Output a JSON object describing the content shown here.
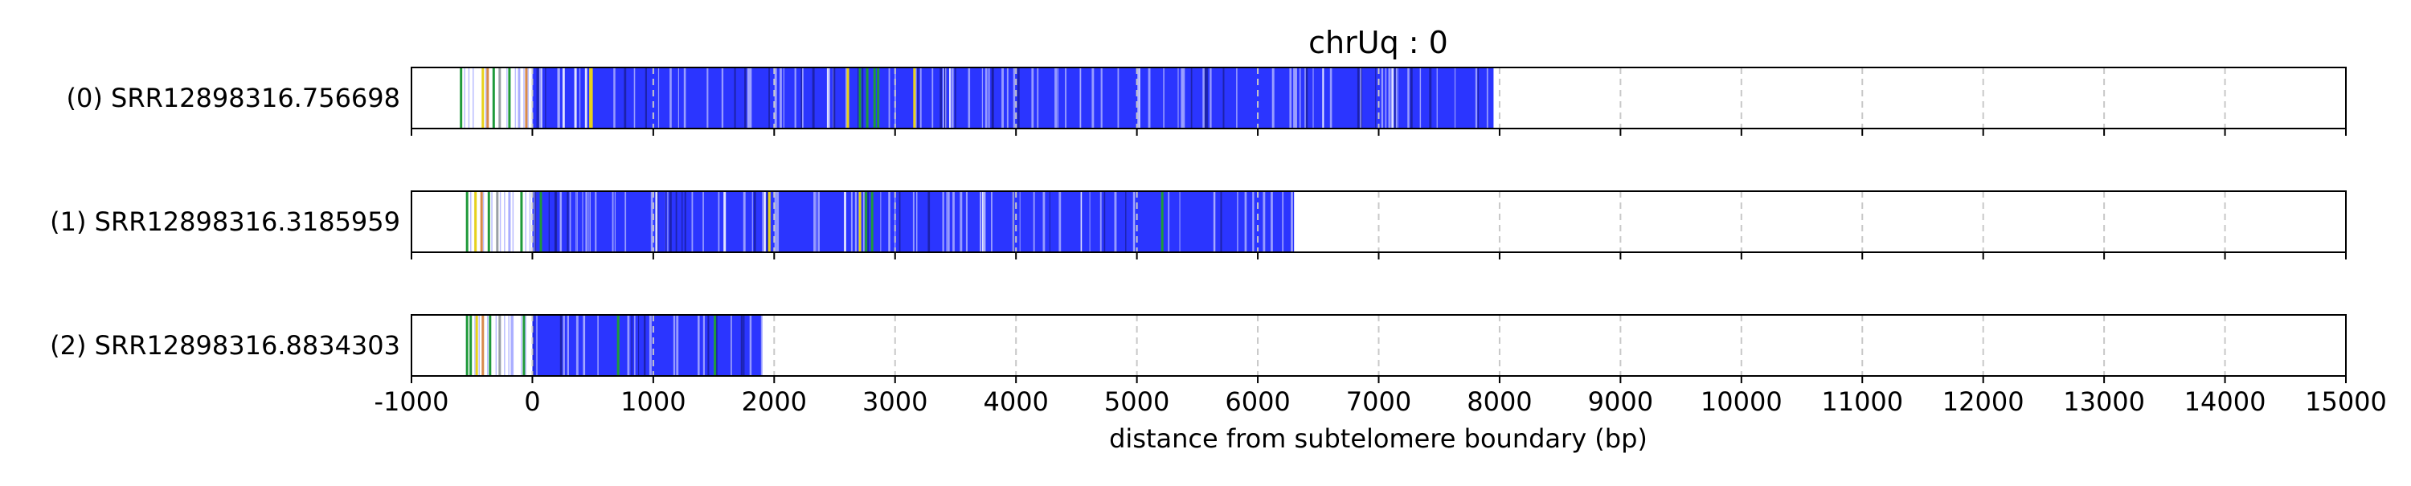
{
  "chart_data": {
    "type": "track-plot",
    "title": "chrUq : 0",
    "xlabel": "distance from subtelomere boundary (bp)",
    "ylabel": "",
    "xlim": [
      -1000,
      15000
    ],
    "xticks": [
      -1000,
      0,
      1000,
      2000,
      3000,
      4000,
      5000,
      6000,
      7000,
      8000,
      9000,
      10000,
      11000,
      12000,
      13000,
      14000,
      15000
    ],
    "grid": "vertical dashed",
    "colors": {
      "main": "#2b35ff",
      "light": "#a9adff",
      "dark": "#1a1f9e",
      "green": "#1f9a3a",
      "yellow": "#e8d21a",
      "orange": "#d88a4a",
      "grey": "#9aa0a6",
      "grid": "#c8c8c8"
    },
    "tracks": [
      {
        "label": "(0) SRR12898316.756698",
        "start": -600,
        "dense_start": 0,
        "end": 7950,
        "features": [
          {
            "x": -600,
            "c": "green"
          },
          {
            "x": -420,
            "c": "yellow"
          },
          {
            "x": -380,
            "c": "orange"
          },
          {
            "x": -330,
            "c": "green"
          },
          {
            "x": -280,
            "c": "grey"
          },
          {
            "x": -200,
            "c": "green"
          },
          {
            "x": -120,
            "c": "light"
          },
          {
            "x": -60,
            "c": "orange"
          },
          {
            "x": 470,
            "c": "yellow"
          },
          {
            "x": 480,
            "c": "yellow"
          },
          {
            "x": 2700,
            "c": "green"
          },
          {
            "x": 2760,
            "c": "green"
          },
          {
            "x": 2820,
            "c": "green"
          },
          {
            "x": 2850,
            "c": "green"
          },
          {
            "x": 2600,
            "c": "yellow"
          },
          {
            "x": 3150,
            "c": "yellow"
          }
        ]
      },
      {
        "label": "(1) SRR12898316.3185959",
        "start": -550,
        "dense_start": 0,
        "end": 6300,
        "features": [
          {
            "x": -550,
            "c": "green"
          },
          {
            "x": -480,
            "c": "yellow"
          },
          {
            "x": -430,
            "c": "orange"
          },
          {
            "x": -370,
            "c": "green"
          },
          {
            "x": -300,
            "c": "grey"
          },
          {
            "x": -200,
            "c": "light"
          },
          {
            "x": -100,
            "c": "green"
          },
          {
            "x": 60,
            "c": "green"
          },
          {
            "x": 1950,
            "c": "yellow"
          },
          {
            "x": 2700,
            "c": "yellow"
          },
          {
            "x": 2750,
            "c": "green"
          },
          {
            "x": 2800,
            "c": "green"
          },
          {
            "x": 5200,
            "c": "green"
          }
        ]
      },
      {
        "label": "(2) SRR12898316.8834303",
        "start": -550,
        "dense_start": 0,
        "end": 1900,
        "features": [
          {
            "x": -550,
            "c": "green"
          },
          {
            "x": -520,
            "c": "green"
          },
          {
            "x": -470,
            "c": "yellow"
          },
          {
            "x": -420,
            "c": "orange"
          },
          {
            "x": -360,
            "c": "green"
          },
          {
            "x": -280,
            "c": "grey"
          },
          {
            "x": -180,
            "c": "light"
          },
          {
            "x": -80,
            "c": "green"
          },
          {
            "x": 700,
            "c": "green"
          },
          {
            "x": 1500,
            "c": "green"
          }
        ]
      }
    ]
  }
}
